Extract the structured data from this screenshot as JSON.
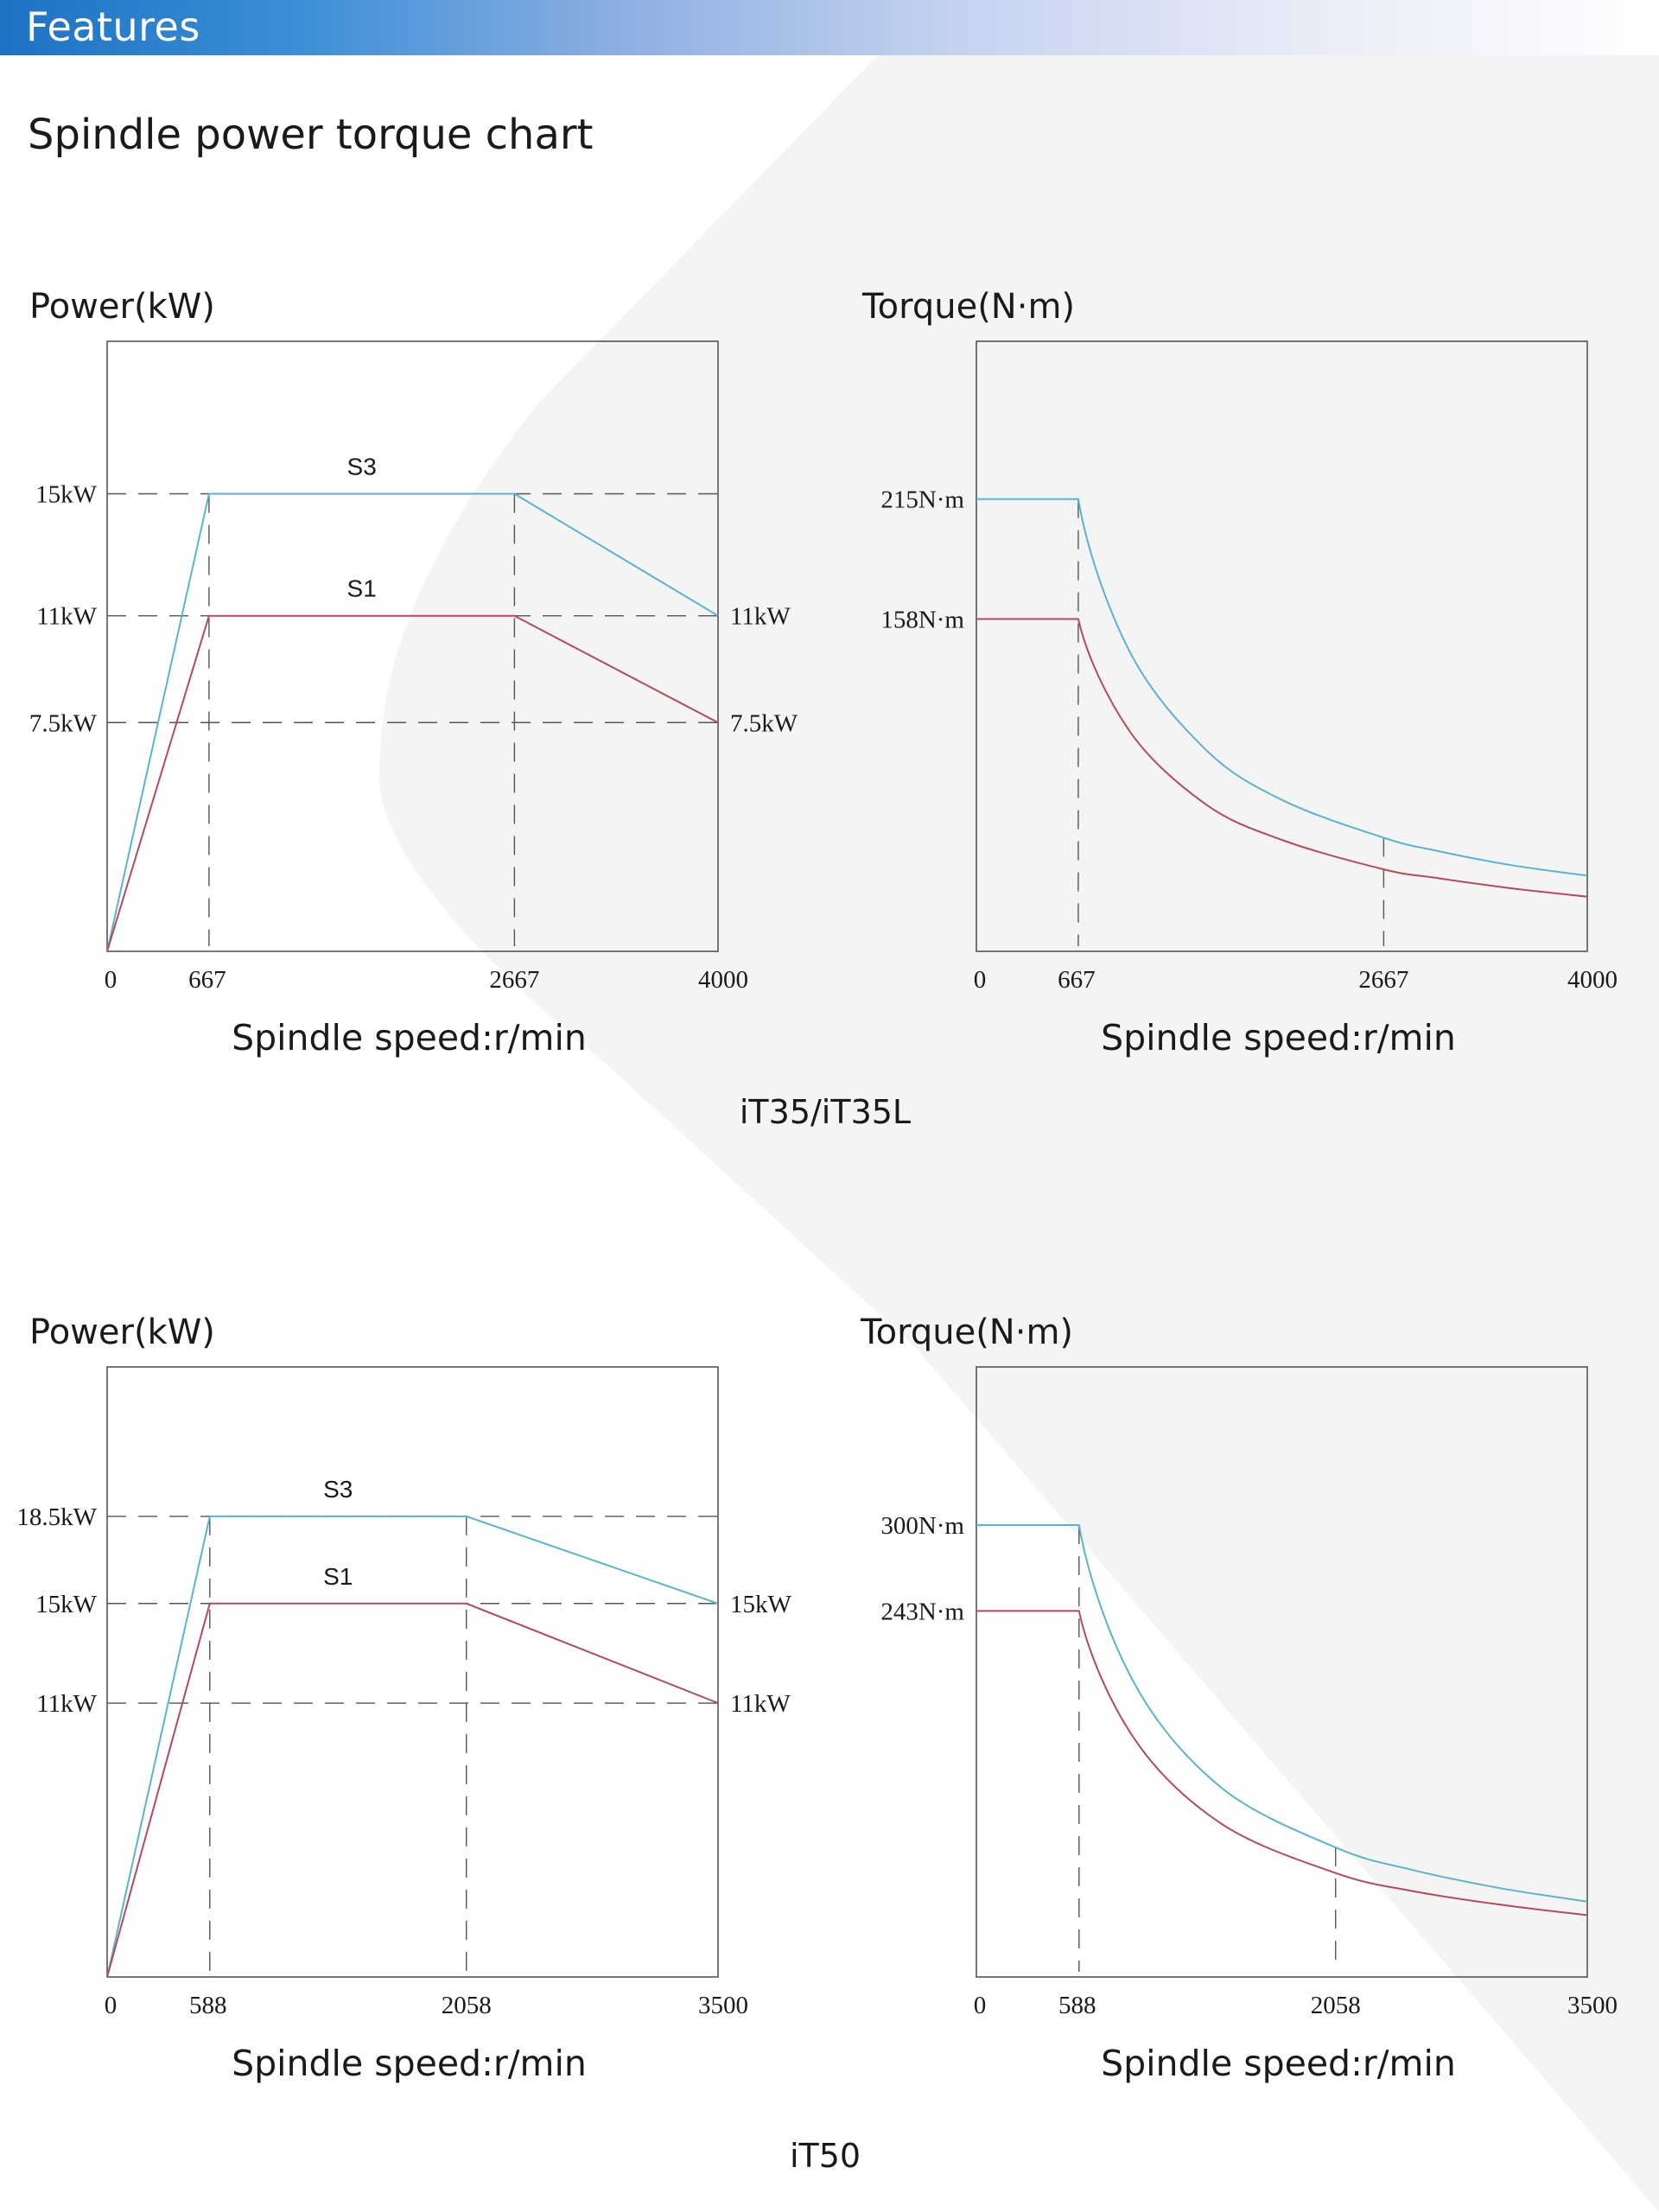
{
  "header": {
    "title": "Features"
  },
  "section_title": "Spindle power torque chart",
  "colors": {
    "s3": "#5ab3d0",
    "s1": "#b5495e",
    "frame": "#555555",
    "guide": "#555555"
  },
  "chart_data": [
    {
      "type": "line",
      "model": "iT35/iT35L",
      "title": "Power(kW)",
      "xlabel": "Spindle speed:r/min",
      "x_ticks": [
        "0",
        "667",
        "2667",
        "4000"
      ],
      "xlim": [
        0,
        4000
      ],
      "ylim": [
        0,
        20
      ],
      "y_ticks_left": [
        "15kW",
        "11kW",
        "7.5kW"
      ],
      "y_ticks_right": [
        "11kW",
        "7.5kW"
      ],
      "series": [
        {
          "name": "S3",
          "color": "#5ab3d0",
          "x": [
            0,
            667,
            2667,
            4000
          ],
          "y": [
            0,
            15,
            15,
            11
          ]
        },
        {
          "name": "S1",
          "color": "#b5495e",
          "x": [
            0,
            667,
            2667,
            4000
          ],
          "y": [
            0,
            11,
            11,
            7.5
          ]
        }
      ],
      "guides": {
        "h": [
          15,
          11,
          7.5
        ],
        "v": [
          667,
          2667
        ]
      }
    },
    {
      "type": "line",
      "model": "iT35/iT35L",
      "title": "Torque(N·m)",
      "xlabel": "Spindle speed:r/min",
      "x_ticks": [
        "0",
        "667",
        "2667",
        "4000"
      ],
      "xlim": [
        0,
        4000
      ],
      "ylim": [
        0,
        290
      ],
      "y_ticks_left": [
        "215N·m",
        "158N·m"
      ],
      "series": [
        {
          "color": "#5ab3d0",
          "x": [
            0,
            667,
            1000,
            1500,
            2000,
            2667,
            3000,
            3500,
            4000
          ],
          "y": [
            215,
            215,
            143,
            96,
            72,
            54,
            48,
            41,
            36
          ]
        },
        {
          "color": "#b5495e",
          "x": [
            0,
            667,
            1000,
            1500,
            2000,
            2667,
            3000,
            3500,
            4000
          ],
          "y": [
            158,
            158,
            105,
            70,
            53,
            39,
            35,
            30,
            26
          ]
        }
      ],
      "guides": {
        "v": [
          667,
          2667
        ]
      }
    },
    {
      "type": "line",
      "model": "iT50",
      "title": "Power(kW)",
      "xlabel": "Spindle speed:r/min",
      "x_ticks": [
        "0",
        "588",
        "2058",
        "3500"
      ],
      "xlim": [
        0,
        3500
      ],
      "ylim": [
        0,
        24.5
      ],
      "y_ticks_left": [
        "18.5kW",
        "15kW",
        "11kW"
      ],
      "y_ticks_right": [
        "15kW",
        "11kW"
      ],
      "series": [
        {
          "name": "S3",
          "color": "#5ab3d0",
          "x": [
            0,
            588,
            2058,
            3500
          ],
          "y": [
            0,
            18.5,
            18.5,
            15
          ]
        },
        {
          "name": "S1",
          "color": "#b5495e",
          "x": [
            0,
            588,
            2058,
            3500
          ],
          "y": [
            0,
            15,
            15,
            11
          ]
        }
      ],
      "guides": {
        "h": [
          18.5,
          15,
          11
        ],
        "v": [
          588,
          2058
        ]
      }
    },
    {
      "type": "line",
      "model": "iT50",
      "title": "Torque(N·m)",
      "xlabel": "Spindle speed:r/min",
      "x_ticks": [
        "0",
        "588",
        "2058",
        "3500"
      ],
      "xlim": [
        0,
        3500
      ],
      "ylim": [
        0,
        405
      ],
      "y_ticks_left": [
        "300N·m",
        "243N·m"
      ],
      "series": [
        {
          "color": "#5ab3d0",
          "x": [
            0,
            588,
            900,
            1400,
            2058,
            2500,
            3000,
            3500
          ],
          "y": [
            300,
            300,
            196,
            126,
            86,
            71,
            59,
            50
          ]
        },
        {
          "color": "#b5495e",
          "x": [
            0,
            588,
            900,
            1400,
            2058,
            2500,
            3000,
            3500
          ],
          "y": [
            243,
            243,
            159,
            102,
            69,
            57,
            48,
            41
          ]
        }
      ],
      "guides": {
        "v": [
          588,
          2058
        ]
      }
    }
  ]
}
